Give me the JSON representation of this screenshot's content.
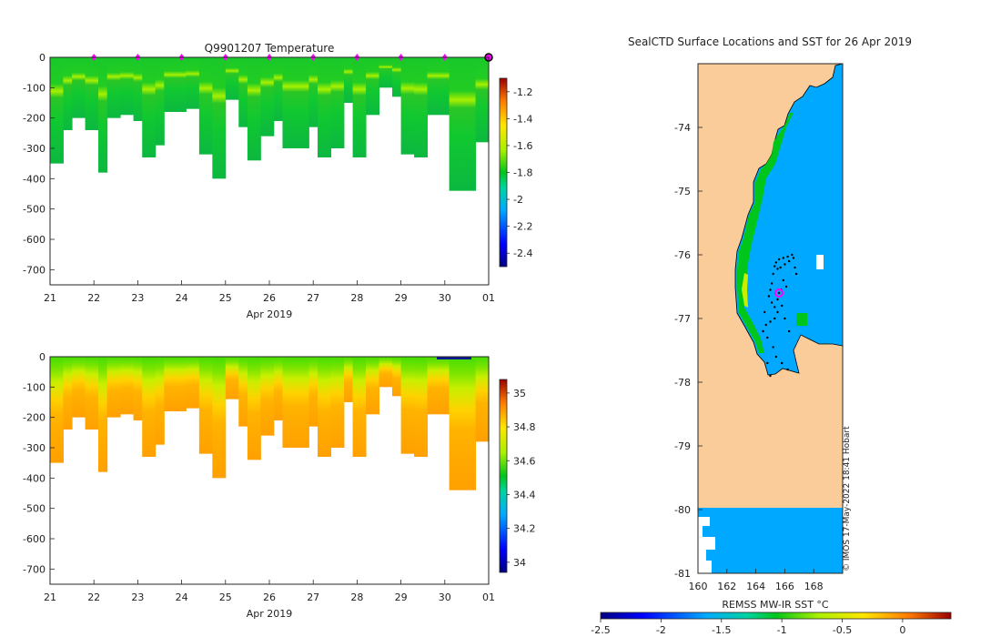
{
  "chart_data": [
    {
      "type": "heatmap",
      "title": "Q9901207  Temperature",
      "xlabel": "Apr 2019",
      "ylabel": "",
      "x_ticks": [
        "21",
        "22",
        "23",
        "24",
        "25",
        "26",
        "27",
        "28",
        "29",
        "30",
        "01"
      ],
      "ylim": [
        -750,
        0
      ],
      "y_ticks": [
        0,
        -100,
        -200,
        -300,
        -400,
        -500,
        -600,
        -700
      ],
      "y_tick_labels": [
        "0",
        "-100",
        "-200",
        "-300",
        "-400",
        "-500",
        "-600",
        "-700"
      ],
      "colorbar": {
        "range": [
          -2.5,
          -1.1
        ],
        "ticks": [
          -1.2,
          -1.4,
          -1.6,
          -1.8,
          -2,
          -2.2,
          -2.4
        ],
        "tick_labels": [
          "-1.2",
          "-1.4",
          "-1.6",
          "-1.8",
          "-2",
          "-2.2",
          "-2.4"
        ]
      },
      "profile_days": [
        21.0,
        21.3,
        21.5,
        21.8,
        22.1,
        22.3,
        22.6,
        22.9,
        23.1,
        23.4,
        23.6,
        23.9,
        24.1,
        24.4,
        24.7,
        25.0,
        25.3,
        25.5,
        25.8,
        26.1,
        26.3,
        26.6,
        26.9,
        27.1,
        27.4,
        27.7,
        27.9,
        28.2,
        28.5,
        28.8,
        29.0,
        29.3,
        29.6,
        29.8,
        30.1,
        30.4,
        30.7,
        31.0
      ],
      "profile_max_depth": [
        350,
        240,
        200,
        240,
        380,
        200,
        190,
        210,
        330,
        290,
        180,
        180,
        170,
        320,
        400,
        140,
        230,
        340,
        260,
        210,
        300,
        300,
        230,
        330,
        300,
        150,
        330,
        190,
        100,
        130,
        320,
        330,
        190,
        190,
        440,
        440,
        280,
        280
      ],
      "surface_markers_days": [
        22,
        23,
        24,
        25,
        26,
        27,
        28,
        29,
        30
      ],
      "last_marker_day": 31.0
    },
    {
      "type": "heatmap",
      "title": "",
      "xlabel": "Apr 2019",
      "ylabel": "",
      "x_ticks": [
        "21",
        "22",
        "23",
        "24",
        "25",
        "26",
        "27",
        "28",
        "29",
        "30",
        "01"
      ],
      "ylim": [
        -750,
        0
      ],
      "y_ticks": [
        0,
        -100,
        -200,
        -300,
        -400,
        -500,
        -600,
        -700
      ],
      "y_tick_labels": [
        "0",
        "-100",
        "-200",
        "-300",
        "-400",
        "-500",
        "-600",
        "-700"
      ],
      "colorbar": {
        "range": [
          33.94,
          35.08
        ],
        "ticks": [
          35,
          34.8,
          34.6,
          34.4,
          34.2,
          34
        ],
        "tick_labels": [
          "35",
          "34.8",
          "34.6",
          "34.4",
          "34.2",
          "34"
        ]
      }
    },
    {
      "type": "heatmap",
      "title": "SealCTD Surface Locations and SST for 26 Apr 2019",
      "xlabel": "",
      "x_ticks": [
        160,
        162,
        164,
        166,
        168
      ],
      "x_tick_labels": [
        "160",
        "162",
        "164",
        "166",
        "168"
      ],
      "xlim": [
        160,
        170
      ],
      "ylim": [
        -81,
        -73
      ],
      "y_ticks": [
        -74,
        -75,
        -76,
        -77,
        -78,
        -79,
        -80,
        -81
      ],
      "y_tick_labels": [
        "-74",
        "-75",
        "-76",
        "-77",
        "-78",
        "-79",
        "-80",
        "-81"
      ],
      "colorbar": {
        "label": "REMSS MW-IR SST °C",
        "range": [
          -2.5,
          0.4
        ],
        "ticks": [
          -2.5,
          -2,
          -1.5,
          -1,
          -0.5,
          0
        ],
        "tick_labels": [
          "-2.5",
          "-2",
          "-1.5",
          "-1",
          "-0.5",
          "0"
        ]
      },
      "current_location": {
        "lon": 165.6,
        "lat": -76.6
      },
      "credit": "© IMOS 17-May-2022 18:41 Hobart"
    }
  ],
  "colors": {
    "land": "#f9cc99",
    "ice_sst": "#00a9ff",
    "track": "#000000",
    "marker": "#ff00ff"
  }
}
